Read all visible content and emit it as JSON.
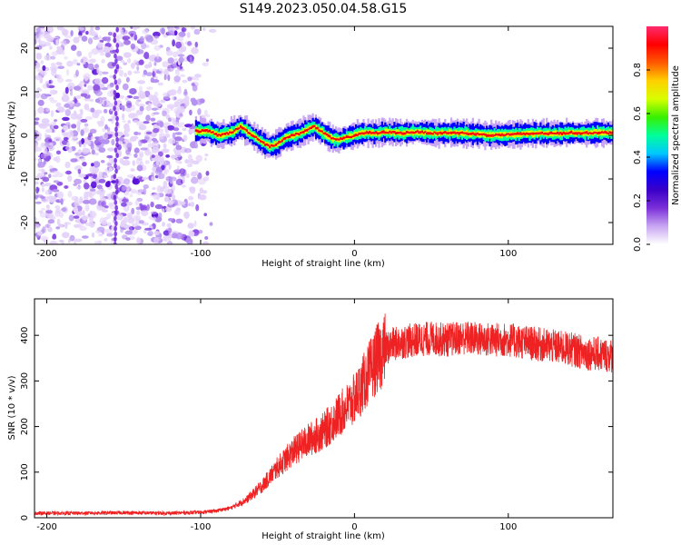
{
  "figure": {
    "title": "S149.2023.050.04.58.G15"
  },
  "chart_data": [
    {
      "type": "heatmap",
      "xlabel": "Height of straight line (km)",
      "ylabel": "Frequency (Hz)",
      "xlim": [
        -208,
        168
      ],
      "ylim": [
        -25,
        25
      ],
      "xticks": [
        -200,
        -100,
        0,
        100
      ],
      "yticks": [
        -20,
        -10,
        0,
        10,
        20
      ],
      "colorbar": {
        "label": "Normalized spectral amplitude",
        "range": [
          0.0,
          1.0
        ],
        "ticks": [
          0.0,
          0.2,
          0.4,
          0.6,
          0.8
        ],
        "tick_labels": [
          "0.0",
          "0.2",
          "0.4",
          "0.6",
          "0.8"
        ],
        "colormap": [
          "#ffffff",
          "#c8a6f2",
          "#7b2fd8",
          "#3a00c8",
          "#0000ff",
          "#00c8ff",
          "#00ff9a",
          "#38f000",
          "#d8ff00",
          "#ffd000",
          "#ff5a00",
          "#ff0000",
          "#ff2a6e"
        ]
      },
      "noise_region_x": [
        -208,
        -92
      ],
      "signal_trace": {
        "x": [
          -103,
          -95,
          -88,
          -82,
          -78,
          -74,
          -70,
          -66,
          -62,
          -58,
          -55,
          -50,
          -45,
          -40,
          -35,
          -30,
          -26,
          -22,
          -18,
          -14,
          -10,
          -5,
          0,
          5,
          10,
          15,
          20,
          30,
          40,
          50,
          60,
          70,
          80,
          90,
          100,
          110,
          120,
          130,
          140,
          150,
          160,
          168
        ],
        "y": [
          1.0,
          1.0,
          0.0,
          0.5,
          1.0,
          2.0,
          1.0,
          0.0,
          -1.0,
          -2.0,
          -2.5,
          -2.0,
          -0.5,
          0.0,
          0.5,
          1.5,
          2.0,
          1.0,
          0.0,
          -0.8,
          -1.0,
          -0.5,
          0.0,
          0.5,
          0.6,
          0.5,
          0.8,
          0.5,
          0.8,
          0.5,
          0.6,
          0.5,
          0.3,
          0.0,
          0.2,
          0.3,
          0.5,
          0.4,
          0.6,
          0.5,
          0.7,
          0.5
        ]
      }
    },
    {
      "type": "line",
      "xlabel": "Height of straight line (km)",
      "ylabel": "SNR (10 * v/v)",
      "xlim": [
        -208,
        168
      ],
      "ylim": [
        0,
        480
      ],
      "xticks": [
        -200,
        -100,
        0,
        100
      ],
      "yticks": [
        0,
        100,
        200,
        300,
        400
      ],
      "series": [
        {
          "color": "#ee2222",
          "x": [
            -208,
            -180,
            -150,
            -120,
            -100,
            -90,
            -80,
            -70,
            -60,
            -50,
            -40,
            -30,
            -20,
            -10,
            0,
            10,
            15,
            20,
            25,
            30,
            40,
            50,
            60,
            70,
            80,
            90,
            100,
            110,
            120,
            130,
            140,
            150,
            160,
            168
          ],
          "y": [
            10,
            10,
            11,
            10,
            12,
            15,
            22,
            40,
            70,
            110,
            145,
            170,
            190,
            225,
            260,
            320,
            350,
            370,
            380,
            385,
            390,
            393,
            390,
            395,
            392,
            390,
            390,
            385,
            380,
            375,
            370,
            362,
            358,
            355
          ]
        }
      ]
    }
  ]
}
